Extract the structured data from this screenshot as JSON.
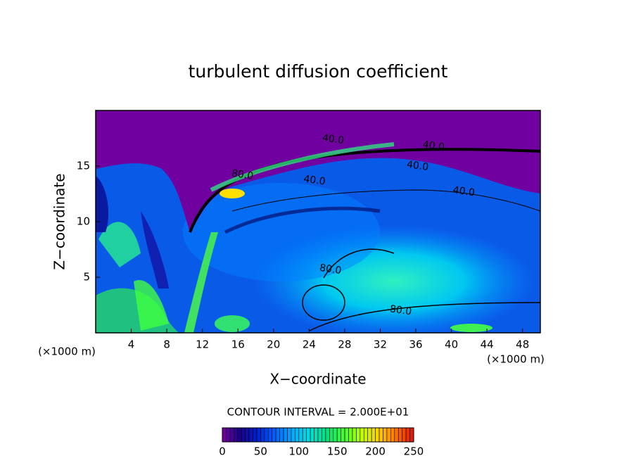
{
  "chart_data": {
    "type": "contour",
    "title": "turbulent diffusion coefficient",
    "x_label": "X−coordinate",
    "y_label": "Z−coordinate",
    "x_unit": "(×1000 m)",
    "y_unit": "(×1000 m)",
    "xlim": [
      0,
      50
    ],
    "xticks": [
      4,
      8,
      12,
      16,
      20,
      24,
      28,
      32,
      36,
      40,
      44,
      48
    ],
    "ylim": [
      0,
      20
    ],
    "yticks": [
      5,
      10,
      15
    ],
    "contour_interval_label": "CONTOUR INTERVAL = 2.000E+01",
    "contour_labels": [
      {
        "text": "40.0",
        "x": 26.7,
        "y": 17.4
      },
      {
        "text": "40.0",
        "x": 38.0,
        "y": 16.8
      },
      {
        "text": "40.0",
        "x": 36.2,
        "y": 15.0
      },
      {
        "text": "40.0",
        "x": 24.6,
        "y": 13.7
      },
      {
        "text": "40.0",
        "x": 41.4,
        "y": 12.7
      },
      {
        "text": "80.0",
        "x": 16.5,
        "y": 14.2
      },
      {
        "text": "80.0",
        "x": 26.4,
        "y": 5.7
      },
      {
        "text": "80.0",
        "x": 34.3,
        "y": 2.0
      }
    ],
    "colorbar": {
      "lim": [
        0,
        250
      ],
      "ticks": [
        0,
        50,
        100,
        150,
        200,
        250
      ],
      "colors": [
        "#7a00a0",
        "#1a008c",
        "#0020d0",
        "#0060ff",
        "#00a8ff",
        "#00e0e0",
        "#00e080",
        "#40ff30",
        "#c0ff00",
        "#ffd000",
        "#ff7000",
        "#e01000"
      ]
    }
  }
}
